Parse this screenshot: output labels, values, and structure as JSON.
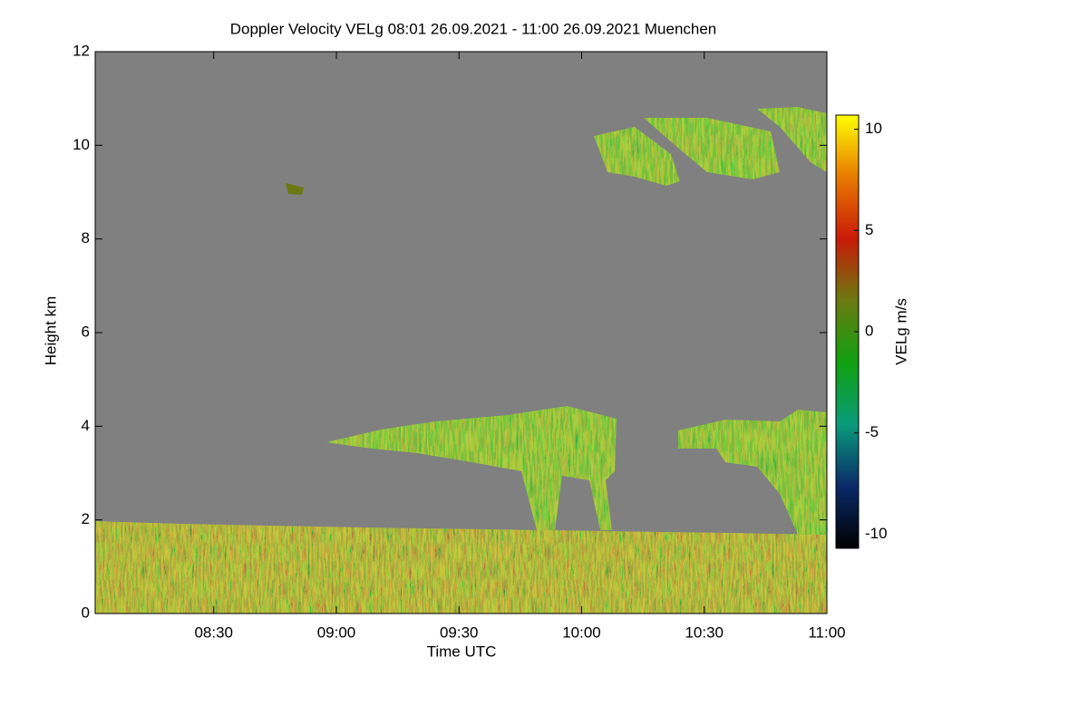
{
  "chart_data": {
    "type": "heatmap",
    "title": "Doppler Velocity VELg   08:01 26.09.2021 - 11:00 26.09.2021 Muenchen",
    "xlabel": "Time UTC",
    "ylabel": "Height km",
    "xlim": [
      "08:01",
      "11:00"
    ],
    "xticks": [
      "08:30",
      "09:00",
      "09:30",
      "10:00",
      "10:30",
      "11:00"
    ],
    "ylim": [
      0,
      12
    ],
    "yticks": [
      0,
      2,
      4,
      6,
      8,
      10,
      12
    ],
    "colorbar": {
      "label": "VELg m/s",
      "lim": [
        -10.7,
        10.7
      ],
      "ticks": [
        -10,
        -5,
        0,
        5,
        10
      ],
      "colors": [
        "#000000",
        "#0a2a6a",
        "#0a9a7a",
        "#10a010",
        "#6a7a10",
        "#c81a08",
        "#e87a00",
        "#ffff00"
      ]
    },
    "background": "#808080"
  }
}
